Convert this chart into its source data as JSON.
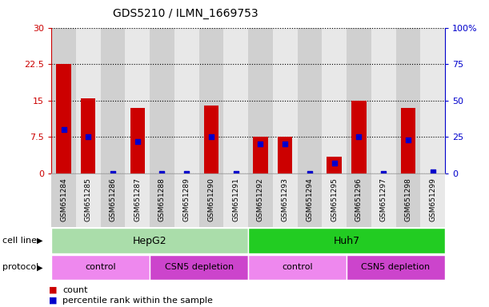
{
  "title": "GDS5210 / ILMN_1669753",
  "samples": [
    "GSM651284",
    "GSM651285",
    "GSM651286",
    "GSM651287",
    "GSM651288",
    "GSM651289",
    "GSM651290",
    "GSM651291",
    "GSM651292",
    "GSM651293",
    "GSM651294",
    "GSM651295",
    "GSM651296",
    "GSM651297",
    "GSM651298",
    "GSM651299"
  ],
  "counts": [
    22.5,
    15.5,
    0,
    13.5,
    0,
    0,
    14.0,
    0,
    7.5,
    7.5,
    0,
    3.5,
    15.0,
    0,
    13.5,
    0
  ],
  "percentile_ranks": [
    30,
    25,
    0,
    22,
    0,
    0,
    25,
    0,
    20,
    20,
    0,
    7,
    25,
    0,
    23,
    1
  ],
  "ylim_left": [
    0,
    30
  ],
  "ylim_right": [
    0,
    100
  ],
  "yticks_left": [
    0,
    7.5,
    15,
    22.5,
    30
  ],
  "ytick_labels_left": [
    "0",
    "7.5",
    "15",
    "22.5",
    "30"
  ],
  "yticks_right": [
    0,
    25,
    50,
    75,
    100
  ],
  "ytick_labels_right": [
    "0",
    "25",
    "50",
    "75",
    "100%"
  ],
  "bar_color": "#cc0000",
  "dot_color": "#0000cc",
  "col_bg_even": "#d0d0d0",
  "col_bg_odd": "#e8e8e8",
  "cell_line_groups": [
    {
      "label": "HepG2",
      "start": 0,
      "end": 7,
      "color": "#aaddaa"
    },
    {
      "label": "Huh7",
      "start": 8,
      "end": 15,
      "color": "#22cc22"
    }
  ],
  "protocol_groups": [
    {
      "label": "control",
      "start": 0,
      "end": 3,
      "color": "#ee88ee"
    },
    {
      "label": "CSN5 depletion",
      "start": 4,
      "end": 7,
      "color": "#cc44cc"
    },
    {
      "label": "control",
      "start": 8,
      "end": 11,
      "color": "#ee88ee"
    },
    {
      "label": "CSN5 depletion",
      "start": 12,
      "end": 15,
      "color": "#cc44cc"
    }
  ],
  "legend_count_label": "count",
  "legend_pct_label": "percentile rank within the sample",
  "cell_line_label": "cell line",
  "protocol_label": "protocol",
  "bg_color": "#ffffff",
  "left_axis_color": "#cc0000",
  "right_axis_color": "#0000cc"
}
